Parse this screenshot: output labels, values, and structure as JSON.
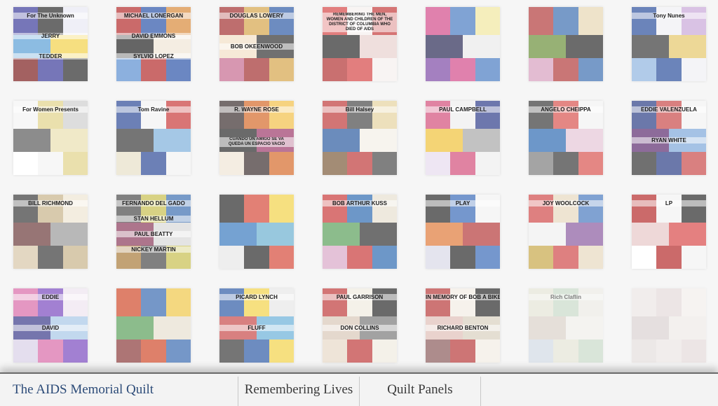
{
  "footer": {
    "title": "The AIDS Memorial Quilt",
    "nav": [
      "Remembering Lives",
      "Quilt Panels"
    ]
  },
  "colors": {
    "brand": "#2c4b78",
    "footer_bg": "#f3f3f3",
    "nav_text": "#3a3a3a"
  },
  "panels": [
    {
      "texts": [
        "For The Unknown",
        "JERRY",
        "TEDDER"
      ],
      "palette": [
        "#3b3b9a",
        "#2c2c2c",
        "#e9e9f4",
        "#5aa0d6",
        "#f2d14a",
        "#7b1d1d"
      ]
    },
    {
      "texts": [
        "MICHAEL LONERGAN",
        "DAVID EMMONS",
        "SYLVIO LOPEZ"
      ],
      "palette": [
        "#b42a2a",
        "#2b54a8",
        "#d98a3a",
        "#232323",
        "#f0e6d6",
        "#5b8ed0"
      ]
    },
    {
      "texts": [
        "DOUGLAS LOWERY",
        "BOB OKEENWOOD"
      ],
      "palette": [
        "#a23030",
        "#d6a64b",
        "#2e5aa6",
        "#f2e1c7",
        "#333333",
        "#c76b8f"
      ]
    },
    {
      "texts": [
        "REMEMBERING THE MEN, WOMEN AND CHILDREN OF THE DISTRICT OF COLUMBIA WHO DIED OF AIDS"
      ],
      "palette": [
        "#d64747",
        "#f6f0ee",
        "#c33a3a",
        "#2a2a2a",
        "#e9d1cf",
        "#b23333"
      ]
    },
    {
      "texts": [],
      "palette": [
        "#d44b8a",
        "#4a7bc2",
        "#f1e8a0",
        "#2a2a55",
        "#eaeaea",
        "#7c4aa4"
      ]
    },
    {
      "texts": [],
      "palette": [
        "#b23b3b",
        "#3d6fb0",
        "#e8d7b4",
        "#6a8f3a",
        "#2b2b2b",
        "#d7a0c0"
      ]
    },
    {
      "texts": [
        "Tony Nunes"
      ],
      "palette": [
        "#2b4f9c",
        "#f0f0f4",
        "#c9a8d8",
        "#3a3a3a",
        "#e6c86a",
        "#8fb5e0"
      ]
    },
    {
      "texts": [
        "For Women Presents"
      ],
      "palette": [
        "#f4f4f4",
        "#e2d28a",
        "#cfcfcf",
        "#5b5b5b",
        "#eadfb0",
        "#ffffff"
      ]
    },
    {
      "texts": [
        "Tom Ravine"
      ],
      "palette": [
        "#2d4a96",
        "#f2f2f2",
        "#c93a3a",
        "#3a3a3a",
        "#7fb0dc",
        "#e8e0c8"
      ]
    },
    {
      "texts": [
        "R. WAYNE ROSE",
        "CUANDO UN AMIGO SE VA QUEDA UN ESPACIO VACIO"
      ],
      "palette": [
        "#3b2f2f",
        "#d66b2a",
        "#f2c14a",
        "#2a2a2a",
        "#9c3a6a",
        "#f0e6d6"
      ]
    },
    {
      "texts": [
        "Bill Halsey"
      ],
      "palette": [
        "#c03a3a",
        "#4a4a4a",
        "#e6d3a0",
        "#2c5aa0",
        "#f4f0e8",
        "#7b5a3a"
      ]
    },
    {
      "texts": [
        "PAUL CAMPBELL"
      ],
      "palette": [
        "#d24d7a",
        "#efefef",
        "#2e3d8a",
        "#f0c23a",
        "#a8a8a8",
        "#e8dcef"
      ]
    },
    {
      "texts": [
        "ANGELO CHEIPPA"
      ],
      "palette": [
        "#3a3a3a",
        "#d9534f",
        "#f2f2f2",
        "#2f6ab1",
        "#e6c7d7",
        "#7d7d7d"
      ]
    },
    {
      "texts": [
        "EDDIE VALENZUELA",
        "RYAN WHITE"
      ],
      "palette": [
        "#2b3e86",
        "#c94a4a",
        "#f3f3f3",
        "#5c2b6e",
        "#7fa8da",
        "#333333"
      ]
    },
    {
      "texts": [
        "BILL RICHMOND"
      ],
      "palette": [
        "#3a3a3a",
        "#c8b48a",
        "#efe6d4",
        "#6b3a3a",
        "#9a9a9a",
        "#d7c7a8"
      ]
    },
    {
      "texts": [
        "FERNANDO DEL GADO",
        "STAN HELLUM",
        "PAUL BEATTY",
        "NICKEY MARTIN"
      ],
      "palette": [
        "#4a4a4a",
        "#c8c050",
        "#3d6fb0",
        "#8a3a5a",
        "#d8d8d8",
        "#a87a3a"
      ]
    },
    {
      "texts": [],
      "palette": [
        "#2a2a2a",
        "#d64a3a",
        "#f2d24a",
        "#3a7ac0",
        "#6cb0d0",
        "#e8e8e8"
      ]
    },
    {
      "texts": [
        "BOB ARTHUR KUSS"
      ],
      "palette": [
        "#c93a3a",
        "#2e6ab0",
        "#e8e0d0",
        "#5aa05a",
        "#333333",
        "#d8a8c8"
      ]
    },
    {
      "texts": [
        "PLAY"
      ],
      "palette": [
        "#2a2a2a",
        "#3a6ab8",
        "#f2f2f2",
        "#e07a3a",
        "#b53a3a",
        "#d8d8e8"
      ]
    },
    {
      "texts": [
        "JOY WOOLCOCK"
      ],
      "palette": [
        "#d04a4a",
        "#e8d8c0",
        "#4a7ac0",
        "#f0f0f0",
        "#8a5aa0",
        "#c8a84a"
      ]
    },
    {
      "texts": [
        "LP"
      ],
      "palette": [
        "#b52a2a",
        "#f2f2f2",
        "#2a2a2a",
        "#e8c8c8",
        "#d84a4a",
        "#ffffff"
      ]
    },
    {
      "texts": [
        "EDDIE",
        "DAVID"
      ],
      "palette": [
        "#d86aa8",
        "#7a4ac0",
        "#efe4f0",
        "#3a3a8a",
        "#a8c8e8",
        "#d8d0e8"
      ]
    },
    {
      "texts": [],
      "palette": [
        "#d04a2a",
        "#3a6ab0",
        "#f0c84a",
        "#5aa05a",
        "#e8e0d0",
        "#8a3a3a"
      ]
    },
    {
      "texts": [
        "PICARD LYNCH",
        "FLUFF"
      ],
      "palette": [
        "#2e5aa6",
        "#f2d24a",
        "#e8e8e8",
        "#c84a4a",
        "#6ab0d8",
        "#3a3a3a"
      ]
    },
    {
      "texts": [
        "PAUL GARRISON",
        "DON COLLINS"
      ],
      "palette": [
        "#c03a3a",
        "#f0ebe0",
        "#2a2a2a",
        "#d8c8b8",
        "#7a7a7a",
        "#e8d8c8"
      ]
    },
    {
      "texts": [
        "IN MEMORY OF BOB A BIKER",
        "RICHARD BENTON"
      ],
      "palette": [
        "#b83a3a",
        "#f2ede4",
        "#2a2a2a",
        "#e0c0b8",
        "#d8d0c0",
        "#8a5a5a"
      ]
    },
    {
      "texts": [
        "Rich Claflin"
      ],
      "palette": [
        "#d8d8c0",
        "#a8c8a8",
        "#e8e4d8",
        "#c8b8a8",
        "#f0ece4",
        "#b8c8d8"
      ]
    },
    {
      "texts": [],
      "palette": [
        "#e8dcd8",
        "#d8c8c8",
        "#f2ece8",
        "#c8b8b8",
        "#ece4e0",
        "#d8d0cc"
      ]
    }
  ]
}
